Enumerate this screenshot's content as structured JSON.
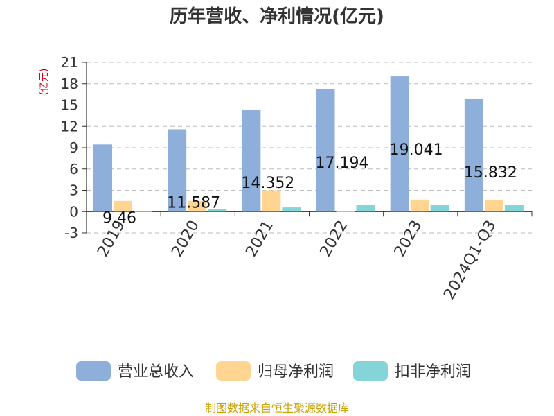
{
  "title": "历年营收、净利情况(亿元)",
  "source": "制图数据来自恒生聚源数据库",
  "colors": {
    "revenue": "#8fafdb",
    "net_profit": "#ffd591",
    "deducted_profit": "#84d4d8",
    "axis": "#333333",
    "grid": "#bbbbbb",
    "unit": "#d9001b",
    "source": "#c8a000"
  },
  "chart_data": {
    "type": "bar",
    "title": "历年营收、净利情况(亿元)",
    "ylabel": "(亿元)",
    "xlabel": "",
    "categories": [
      "2019",
      "2020",
      "2021",
      "2022",
      "2023",
      "2024Q1-Q3"
    ],
    "yticks": [
      "-3",
      "0",
      "3",
      "6",
      "9",
      "12",
      "15",
      "18",
      "21"
    ],
    "ylim": [
      -3,
      21
    ],
    "grid": true,
    "legend_position": "bottom",
    "series": [
      {
        "name": "营业总收入",
        "values": [
          9.46,
          11.587,
          14.352,
          17.194,
          19.041,
          15.832
        ],
        "labels": [
          "9.46",
          "11.587",
          "14.352",
          "17.194",
          "19.041",
          "15.832"
        ]
      },
      {
        "name": "归母净利润",
        "values": [
          1.5,
          1.5,
          3.0,
          0.05,
          1.7,
          1.7
        ]
      },
      {
        "name": "扣非净利润",
        "values": [
          0.05,
          0.4,
          0.6,
          1.0,
          1.0,
          1.0
        ]
      }
    ]
  }
}
